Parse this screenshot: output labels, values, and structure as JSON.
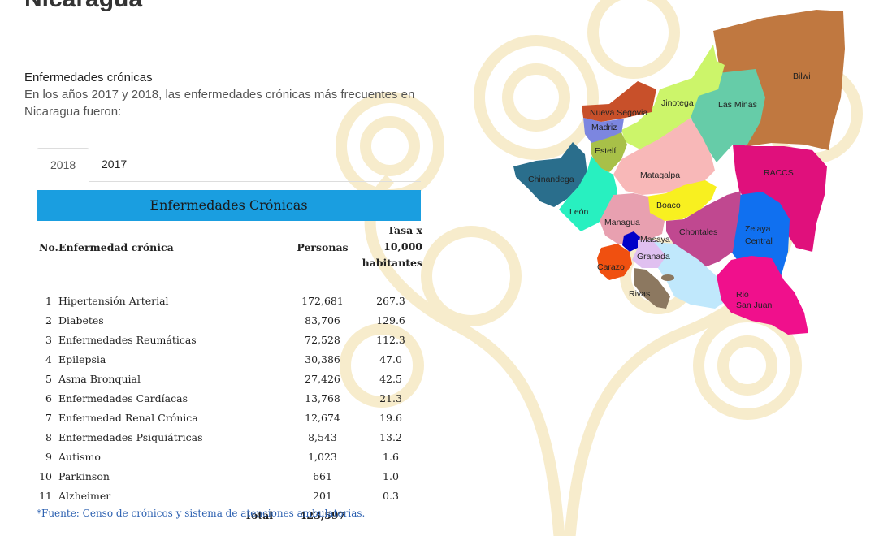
{
  "page": {
    "title": "Nicaragua"
  },
  "section": {
    "heading": "Enfermedades crónicas",
    "intro": "En los años 2017 y 2018, las enfermedades crónicas más frecuentes en Nicaragua fueron:"
  },
  "tabs": [
    {
      "label": "2018",
      "active": true
    },
    {
      "label": "2017",
      "active": false
    }
  ],
  "table": {
    "title": "Enfermedades Crónicas",
    "headers": {
      "no": "No.",
      "disease": "Enfermedad crónica",
      "personas": "Personas",
      "tasa_l1": "Tasa x",
      "tasa_l2": "10,000",
      "tasa_l3": "habitantes"
    },
    "rows": [
      {
        "no": "1",
        "name": "Hipertensión Arterial",
        "personas": "172,681",
        "tasa": "267.3"
      },
      {
        "no": "2",
        "name": "Diabetes",
        "personas": "83,706",
        "tasa": "129.6"
      },
      {
        "no": "3",
        "name": "Enfermedades Reumáticas",
        "personas": "72,528",
        "tasa": "112.3"
      },
      {
        "no": "4",
        "name": "Epilepsia",
        "personas": "30,386",
        "tasa": "47.0"
      },
      {
        "no": "5",
        "name": "Asma Bronquial",
        "personas": "27,426",
        "tasa": "42.5"
      },
      {
        "no": "6",
        "name": "Enfermedades Cardíacas",
        "personas": "13,768",
        "tasa": "21.3"
      },
      {
        "no": "7",
        "name": "Enfermedad Renal Crónica",
        "personas": "12,674",
        "tasa": "19.6"
      },
      {
        "no": "8",
        "name": "Enfermedades Psiquiátricas",
        "personas": "8,543",
        "tasa": "13.2"
      },
      {
        "no": "9",
        "name": "Autismo",
        "personas": "1,023",
        "tasa": "1.6"
      },
      {
        "no": "10",
        "name": "Parkinson",
        "personas": "661",
        "tasa": "1.0"
      },
      {
        "no": "11",
        "name": "Alzheimer",
        "personas": "201",
        "tasa": "0.3"
      }
    ],
    "total": {
      "label": "Total",
      "personas": "423,597"
    },
    "source": "*Fuente: Censo de crónicos y sistema de atenciones ambulatorias."
  },
  "map": {
    "regions": [
      {
        "name": "Nueva Segovia",
        "color": "#c8502a"
      },
      {
        "name": "Jinotega",
        "color": "#ccf56a"
      },
      {
        "name": "Las Minas",
        "color": "#66cca8"
      },
      {
        "name": "Bilwi",
        "color": "#c07840"
      },
      {
        "name": "Madriz",
        "color": "#7c86e0"
      },
      {
        "name": "Estelí",
        "color": "#a8c048"
      },
      {
        "name": "Chinandega",
        "color": "#2a6e8c"
      },
      {
        "name": "Matagalpa",
        "color": "#f8b8b8"
      },
      {
        "name": "RACCS",
        "color": "#e0107c"
      },
      {
        "name": "León",
        "color": "#28f0c0"
      },
      {
        "name": "Boaco",
        "color": "#f8f020"
      },
      {
        "name": "Managua",
        "color": "#e8a0b0"
      },
      {
        "name": "Chontales",
        "color": "#c04890"
      },
      {
        "name": "Zelaya Central",
        "color": "#1070f0"
      },
      {
        "name": "Masaya",
        "color": "#0000c8"
      },
      {
        "name": "Granada",
        "color": "#e0c0f0"
      },
      {
        "name": "Carazo",
        "color": "#f05010"
      },
      {
        "name": "Rivas",
        "color": "#8c7860"
      },
      {
        "name": "Río San Juan",
        "color": "#f0108c"
      },
      {
        "name": "Lago",
        "color": "#c0e8fc"
      }
    ]
  }
}
